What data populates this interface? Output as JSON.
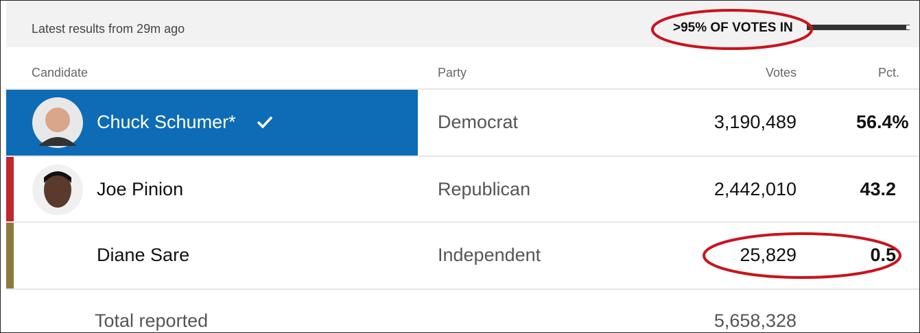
{
  "header": {
    "status": "Latest results from 29m ago",
    "votes_in": ">95% OF VOTES IN"
  },
  "table": {
    "columns": [
      "Candidate",
      "Party",
      "Votes",
      "Pct."
    ],
    "rows": [
      [
        "Chuck Schumer*",
        "Democrat",
        "3,190,489",
        "56.4%"
      ],
      [
        "Joe Pinion",
        "Republican",
        "2,442,010",
        "43.2"
      ],
      [
        "Diane Sare",
        "Independent",
        "25,829",
        "0.5"
      ]
    ],
    "total": {
      "label": "Total reported",
      "votes": "5,658,328"
    }
  }
}
